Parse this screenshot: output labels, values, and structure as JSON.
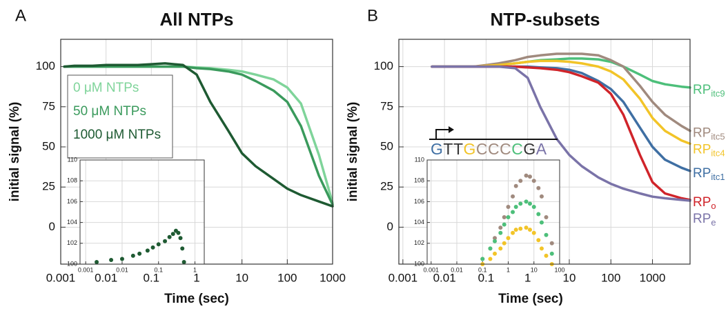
{
  "chart_data": [
    {
      "type": "line",
      "panel": "A",
      "title": "All NTPs",
      "x_label": "Time (sec)",
      "y_label": "initial signal (%)",
      "xscale": "log",
      "grid": true,
      "legend": "upper left",
      "x": [
        0.0012,
        0.002,
        0.005,
        0.01,
        0.02,
        0.05,
        0.1,
        0.2,
        0.5,
        1,
        2,
        5,
        10,
        20,
        50,
        100,
        200,
        500,
        1000
      ],
      "xlim": [
        0.001,
        1000
      ],
      "xticks": [
        0.001,
        0.01,
        0.1,
        1,
        10,
        100,
        1000
      ],
      "ylim": [
        -23,
        117
      ],
      "yticks": [
        0,
        25,
        50,
        75,
        100
      ],
      "series": [
        {
          "name": "0 μM NTPs",
          "color": "#7fd49a",
          "values": [
            100,
            100,
            100,
            100,
            100,
            100,
            100,
            100,
            100,
            99.5,
            99,
            98,
            97,
            95,
            92,
            87,
            77,
            45,
            15
          ]
        },
        {
          "name": "50 μM NTPs",
          "color": "#3a9a5c",
          "values": [
            100,
            100,
            100,
            100,
            100,
            100,
            100,
            100,
            100,
            99,
            98.5,
            97,
            95,
            91,
            85,
            78,
            63,
            32,
            14
          ]
        },
        {
          "name": "1000 μM NTPs",
          "color": "#1e5a32",
          "values": [
            100,
            100.5,
            100.5,
            101,
            101,
            101,
            101.5,
            102,
            101,
            95,
            78,
            60,
            46,
            38,
            30,
            24,
            20,
            16,
            13
          ]
        }
      ],
      "inset": {
        "type": "scatter",
        "xscale": "log",
        "xlim": [
          0.0007,
          1.8
        ],
        "xticks": [
          0.001,
          0.01,
          0.1,
          1
        ],
        "ylim": [
          100,
          110
        ],
        "yticks": [
          100,
          102,
          104,
          106,
          108,
          110
        ],
        "x": [
          0.002,
          0.005,
          0.01,
          0.02,
          0.03,
          0.05,
          0.07,
          0.1,
          0.15,
          0.2,
          0.25,
          0.3,
          0.35,
          0.4,
          0.45,
          0.5
        ],
        "series": [
          {
            "color": "#1e5a32",
            "values": [
              100.2,
              100.4,
              100.5,
              100.8,
              101,
              101.3,
              101.6,
              101.9,
              102.2,
              102.6,
              102.9,
              103.2,
              103,
              102.5,
              101.5,
              100.2
            ]
          }
        ]
      }
    },
    {
      "type": "line",
      "panel": "B",
      "title": "NTP-subsets",
      "x_label": "Time (sec)",
      "y_label": "initial signal (%)",
      "xscale": "log",
      "grid": true,
      "legend": "line end",
      "x": [
        0.005,
        0.01,
        0.02,
        0.05,
        0.1,
        0.2,
        0.5,
        1,
        2,
        5,
        10,
        20,
        50,
        100,
        200,
        500,
        1000,
        2000,
        5000,
        8000
      ],
      "xlim": [
        0.0008,
        8000
      ],
      "xticks": [
        0.001,
        0.01,
        0.1,
        1,
        10,
        100,
        1000
      ],
      "ylim": [
        -23,
        117
      ],
      "yticks": [
        0,
        25,
        50,
        75,
        100
      ],
      "series": [
        {
          "name": "RP",
          "subscript": "itc9",
          "color": "#4dbf7a",
          "values": [
            100,
            100,
            100,
            100,
            100.5,
            101,
            102,
            103,
            104,
            104.5,
            105,
            105,
            104.5,
            103,
            100,
            95,
            91,
            89,
            87.5,
            87
          ]
        },
        {
          "name": "RP",
          "subscript": "itc5",
          "color": "#a08a7e",
          "values": [
            100,
            100,
            100,
            100,
            101,
            102,
            104,
            106,
            107,
            108,
            108,
            108,
            107,
            104,
            100,
            88,
            78,
            70,
            63,
            60
          ]
        },
        {
          "name": "RP",
          "subscript": "itc4",
          "color": "#f2c428",
          "values": [
            100,
            100,
            100,
            100,
            100.5,
            101,
            102,
            103,
            103.5,
            103.5,
            103,
            102,
            100,
            97,
            92,
            80,
            68,
            60,
            54,
            52
          ]
        },
        {
          "name": "RP",
          "subscript": "itc1",
          "color": "#3f6fa3",
          "values": [
            100,
            100,
            100,
            100,
            100,
            100,
            100,
            100,
            99.5,
            99,
            98,
            96,
            91,
            86,
            78,
            62,
            50,
            42,
            37,
            35
          ]
        },
        {
          "name": "RP",
          "subscript": "o",
          "color": "#d0242a",
          "values": [
            100,
            100,
            100,
            100,
            100,
            100,
            100,
            99.5,
            99,
            98,
            96.5,
            94,
            90,
            83,
            70,
            45,
            28,
            21,
            18,
            17
          ]
        },
        {
          "name": "RP",
          "subscript": "e",
          "color": "#7a73a8",
          "values": [
            100,
            100,
            100,
            100,
            100,
            100,
            99,
            93,
            75,
            55,
            45,
            38,
            31,
            27,
            24,
            21,
            19,
            18,
            17,
            16.5
          ]
        }
      ],
      "sequence": [
        "G",
        "T",
        "T",
        "G",
        "C",
        "C",
        "C",
        "C",
        "G",
        "A"
      ],
      "sequence_colors": [
        "#3f6fa3",
        "#333333",
        "#333333",
        "#f2c428",
        "#a08a7e",
        "#a08a7e",
        "#a08a7e",
        "#4dbf7a",
        "#333333",
        "#7a73a8"
      ],
      "inset": {
        "type": "scatter",
        "xscale": "log",
        "xlim": [
          0.0007,
          100
        ],
        "xticks": [
          0.001,
          0.01,
          0.1,
          1,
          10,
          100
        ],
        "ylim": [
          100,
          110
        ],
        "yticks": [
          100,
          102,
          104,
          106,
          108,
          110
        ],
        "x": [
          0.1,
          0.2,
          0.3,
          0.5,
          0.7,
          1,
          1.5,
          2,
          3,
          5,
          7,
          10,
          15,
          20,
          30,
          50
        ],
        "series": [
          {
            "color": "#a08a7e",
            "values": [
              100.5,
              101.5,
              102.5,
              103.5,
              104.5,
              105.5,
              106.5,
              107.5,
              108,
              108.5,
              108.4,
              108,
              107.3,
              106.5,
              104.5,
              102
            ]
          },
          {
            "color": "#4dbf7a",
            "values": [
              100.5,
              101.5,
              102.2,
              103,
              103.8,
              104.5,
              105,
              105.5,
              105.8,
              106,
              105.8,
              105.5,
              104.8,
              104,
              102.8,
              101
            ]
          },
          {
            "color": "#f2c428",
            "values": [
              100,
              100.5,
              101,
              101.5,
              102,
              102.5,
              103,
              103.3,
              103.4,
              103.5,
              103.3,
              103,
              102.3,
              101.5,
              100.8,
              100
            ]
          }
        ]
      }
    }
  ]
}
